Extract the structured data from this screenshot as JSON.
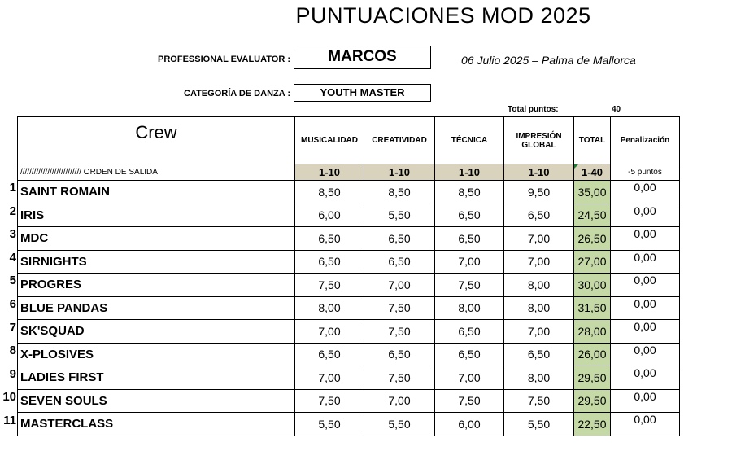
{
  "title": "PUNTUACIONES MOD 2025",
  "evaluator": {
    "label": "PROFESSIONAL EVALUATOR :",
    "name": "MARCOS"
  },
  "date_location": "06 Julio 2025 – Palma de Mallorca",
  "category": {
    "label": "CATEGORÍA DE DANZA :",
    "value": "YOUTH MASTER"
  },
  "total_points": {
    "label": "Total puntos:",
    "value": "40"
  },
  "table": {
    "headers": {
      "crew": "Crew",
      "musicalidad": "MUSICALIDAD",
      "creatividad": "CREATIVIDAD",
      "tecnica": "TÉCNICA",
      "impresion": "IMPRESIÓN GLOBAL",
      "total": "TOTAL",
      "penalizacion": "Penalización"
    },
    "subheaders": {
      "orden": "///////////////////////////  ORDEN DE SALIDA",
      "musicalidad": "1-10",
      "creatividad": "1-10",
      "tecnica": "1-10",
      "impresion": "1-10",
      "total": "1-40",
      "penalizacion": "-5 puntos"
    },
    "rows": [
      {
        "num": "1",
        "crew": "SAINT ROMAIN",
        "musicalidad": "8,50",
        "creatividad": "8,50",
        "tecnica": "8,50",
        "impresion": "9,50",
        "total": "35,00",
        "penalizacion": "0,00"
      },
      {
        "num": "2",
        "crew": "IRIS",
        "musicalidad": "6,00",
        "creatividad": "5,50",
        "tecnica": "6,50",
        "impresion": "6,50",
        "total": "24,50",
        "penalizacion": "0,00"
      },
      {
        "num": "3",
        "crew": "MDC",
        "musicalidad": "6,50",
        "creatividad": "6,50",
        "tecnica": "6,50",
        "impresion": "7,00",
        "total": "26,50",
        "penalizacion": "0,00"
      },
      {
        "num": "4",
        "crew": "SIRNIGHTS",
        "musicalidad": "6,50",
        "creatividad": "6,50",
        "tecnica": "7,00",
        "impresion": "7,00",
        "total": "27,00",
        "penalizacion": "0,00"
      },
      {
        "num": "5",
        "crew": "PROGRES",
        "musicalidad": "7,50",
        "creatividad": "7,00",
        "tecnica": "7,50",
        "impresion": "8,00",
        "total": "30,00",
        "penalizacion": "0,00"
      },
      {
        "num": "6",
        "crew": "BLUE PANDAS",
        "musicalidad": "8,00",
        "creatividad": "7,50",
        "tecnica": "8,00",
        "impresion": "8,00",
        "total": "31,50",
        "penalizacion": "0,00"
      },
      {
        "num": "7",
        "crew": "SK'SQUAD",
        "musicalidad": "7,00",
        "creatividad": "7,50",
        "tecnica": "6,50",
        "impresion": "7,00",
        "total": "28,00",
        "penalizacion": "0,00"
      },
      {
        "num": "8",
        "crew": "X-PLOSIVES",
        "musicalidad": "6,50",
        "creatividad": "6,50",
        "tecnica": "6,50",
        "impresion": "6,50",
        "total": "26,00",
        "penalizacion": "0,00"
      },
      {
        "num": "9",
        "crew": "LADIES FIRST",
        "musicalidad": "7,00",
        "creatividad": "7,50",
        "tecnica": "7,00",
        "impresion": "8,00",
        "total": "29,50",
        "penalizacion": "0,00"
      },
      {
        "num": "10",
        "crew": "SEVEN SOULS",
        "musicalidad": "7,50",
        "creatividad": "7,00",
        "tecnica": "7,50",
        "impresion": "7,50",
        "total": "29,50",
        "penalizacion": "0,00"
      },
      {
        "num": "11",
        "crew": "MASTERCLASS",
        "musicalidad": "5,50",
        "creatividad": "5,50",
        "tecnica": "6,00",
        "impresion": "5,50",
        "total": "22,50",
        "penalizacion": "0,00"
      }
    ]
  },
  "colors": {
    "subheader_bg": "#d9d3bd",
    "total_bg": "#c5d9a6",
    "indicator": "#1e7b34"
  }
}
